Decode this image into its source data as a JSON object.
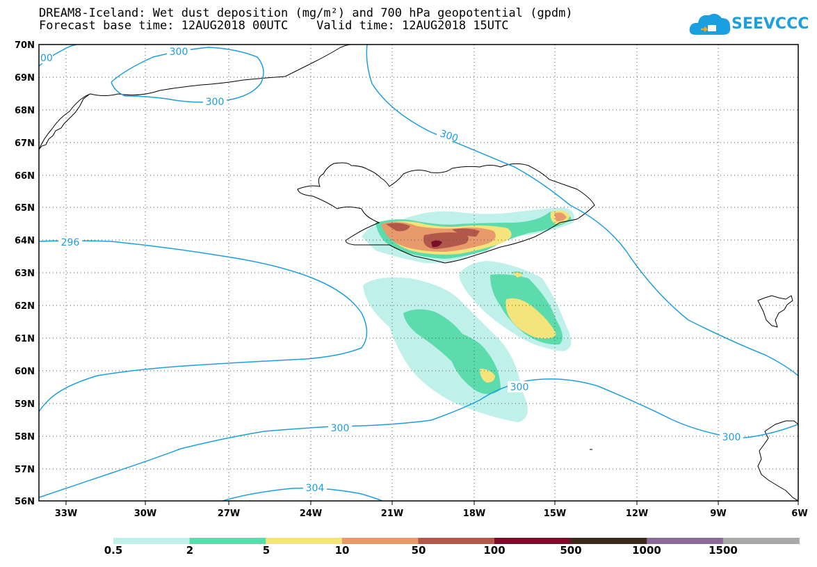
{
  "title": {
    "line1": "DREAM8-Iceland: Wet dust deposition (mg/m²) and 700 hPa geopotential (gpdm)",
    "line2": "Forecast base time: 12AUG2018 00UTC    Valid time: 12AUG2018 15UTC"
  },
  "logo": {
    "text": "SEEVCCC",
    "icon": "cloud-logo-icon"
  },
  "map": {
    "projection": "lat-lon",
    "lon_range": [
      -34.5,
      -6
    ],
    "lat_range": [
      56,
      70
    ],
    "lat_labels": [
      "70N",
      "69N",
      "68N",
      "67N",
      "66N",
      "65N",
      "64N",
      "63N",
      "62N",
      "61N",
      "60N",
      "59N",
      "58N",
      "57N",
      "56N"
    ],
    "lat_values": [
      70,
      69,
      68,
      67,
      66,
      65,
      64,
      63,
      62,
      61,
      60,
      59,
      58,
      57,
      56
    ],
    "lon_labels": [
      "33W",
      "30W",
      "27W",
      "24W",
      "21W",
      "18W",
      "15W",
      "12W",
      "9W",
      "6W"
    ],
    "lon_values": [
      -33,
      -30,
      -27,
      -24,
      -21,
      -18,
      -15,
      -12,
      -9,
      -6
    ],
    "grid": "dotted",
    "contour_color": "#1a9fe0",
    "contour_labels": [
      "300",
      "300",
      "300",
      "296",
      "300",
      "300",
      "300",
      "304",
      "00"
    ]
  },
  "colorbar": {
    "labels": [
      "0.5",
      "2",
      "5",
      "10",
      "50",
      "100",
      "500",
      "1000",
      "1500"
    ],
    "colors": [
      "#bff0ea",
      "#5cdcac",
      "#f5e47c",
      "#e99a6a",
      "#b2584a",
      "#7a0e28",
      "#3c2a1c",
      "#8b6a9a",
      "#a8a8a8"
    ]
  }
}
